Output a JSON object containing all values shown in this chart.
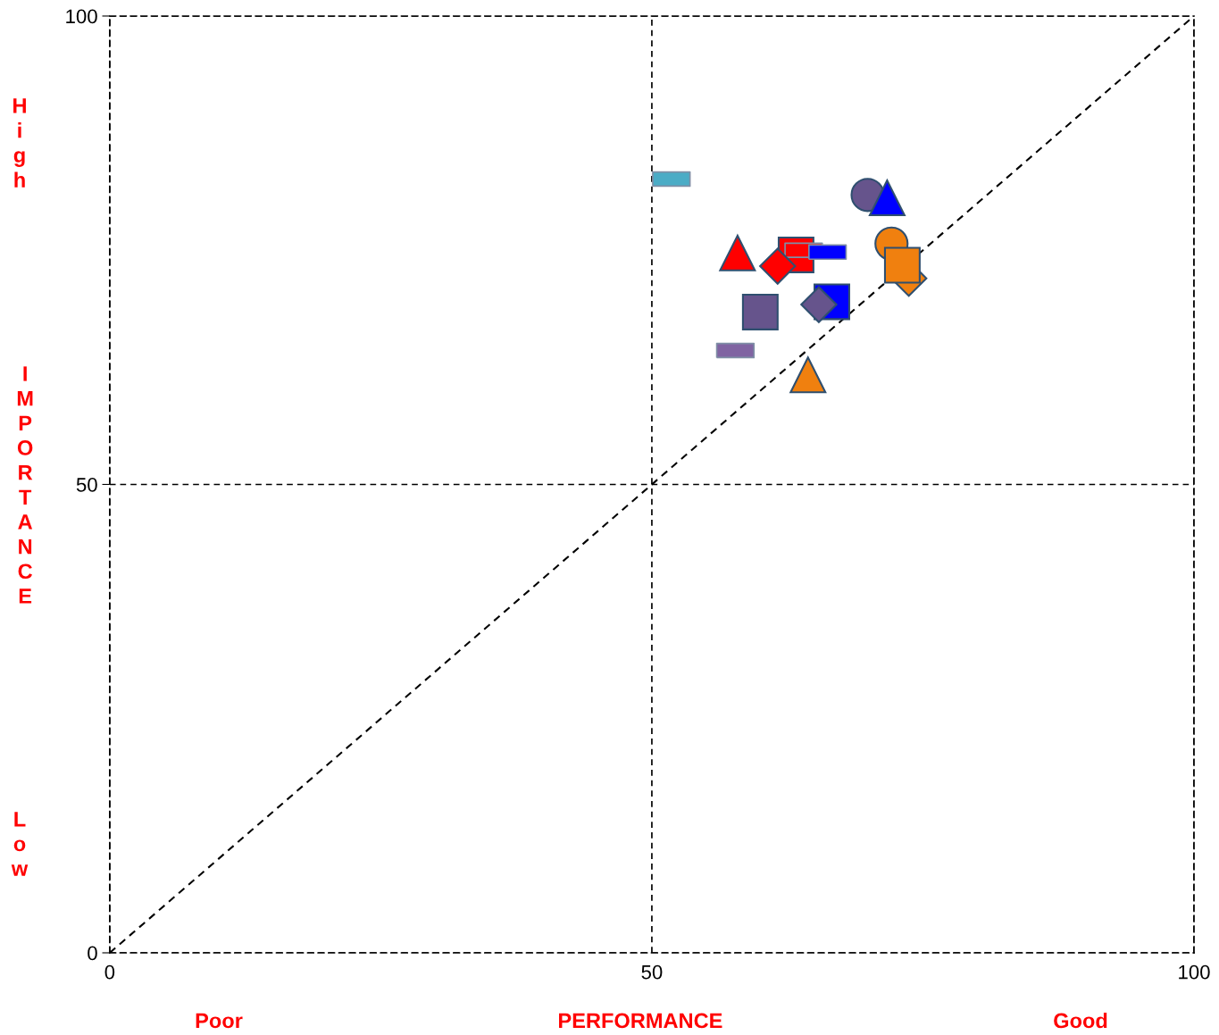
{
  "chart_data": {
    "type": "scatter",
    "xlabel": "PERFORMANCE",
    "ylabel": "IMPORTANCE",
    "annotations": [
      "Poor",
      "Good",
      "High",
      "Low"
    ],
    "xlim": [
      0,
      100
    ],
    "ylim": [
      0,
      100
    ],
    "xticks": [
      0,
      50,
      100
    ],
    "yticks": [
      0,
      50,
      100
    ],
    "grid": true,
    "line_style": "dashed",
    "series": [
      {
        "type": "line",
        "x": [
          0,
          100
        ],
        "values": [
          0,
          100
        ],
        "color": "#000000",
        "marker": "none",
        "line_style": "dashed"
      },
      {
        "x": [
          51.8
        ],
        "values": [
          82.6
        ],
        "color": "#4bacc6"
      },
      {
        "x": [
          69.9
        ],
        "values": [
          80.9
        ],
        "color": "#66548c",
        "marker": "circle"
      },
      {
        "x": [
          71.7
        ],
        "values": [
          80.6
        ],
        "color": "#0000ff",
        "marker": "triangle"
      },
      {
        "x": [
          57.9
        ],
        "values": [
          74.7
        ],
        "color": "#ff0000",
        "marker": "triangle"
      },
      {
        "x": [
          63.3
        ],
        "values": [
          74.5
        ],
        "color": "#ff0000",
        "marker": "square"
      },
      {
        "x": [
          64.0
        ],
        "values": [
          75.0
        ],
        "color": "#ff0000"
      },
      {
        "x": [
          66.2
        ],
        "values": [
          74.8
        ],
        "color": "#0000ff"
      },
      {
        "x": [
          61.6
        ],
        "values": [
          73.3
        ],
        "color": "#ff0000",
        "marker": "diamond"
      },
      {
        "x": [
          72.1
        ],
        "values": [
          75.7
        ],
        "color": "#f0800f",
        "marker": "circle"
      },
      {
        "x": [
          73.7
        ],
        "values": [
          72.0
        ],
        "color": "#f0800f",
        "marker": "diamond"
      },
      {
        "x": [
          73.1
        ],
        "values": [
          73.4
        ],
        "color": "#f0800f",
        "marker": "square"
      },
      {
        "x": [
          60.0
        ],
        "values": [
          68.4
        ],
        "color": "#66548c",
        "marker": "square"
      },
      {
        "x": [
          66.6
        ],
        "values": [
          69.5
        ],
        "color": "#0000ff",
        "marker": "square"
      },
      {
        "x": [
          65.4
        ],
        "values": [
          69.2
        ],
        "color": "#66548c",
        "marker": "diamond"
      },
      {
        "x": [
          57.7
        ],
        "values": [
          64.3
        ],
        "color": "#8064a2"
      },
      {
        "x": [
          64.4
        ],
        "values": [
          61.7
        ],
        "color": "#f0800f",
        "marker": "triangle"
      }
    ]
  }
}
